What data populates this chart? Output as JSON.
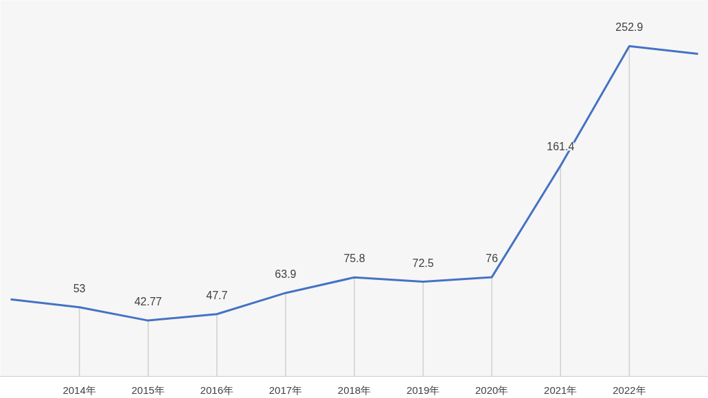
{
  "chart_data": {
    "type": "line",
    "categories": [
      null,
      "2014年",
      "2015年",
      "2016年",
      "2017年",
      "2018年",
      "2019年",
      "2020年",
      "2021年",
      "2022年",
      null
    ],
    "series": [
      {
        "color": "#4472c4",
        "values": [
          59,
          53,
          42.77,
          47.7,
          63.9,
          75.8,
          72.5,
          76,
          161.4,
          252.9,
          247
        ],
        "value_labels": [
          null,
          "53",
          "42.77",
          "47.7",
          "63.9",
          "75.8",
          "72.5",
          "76",
          "161.4",
          "252.9",
          null
        ]
      }
    ],
    "ylim": [
      0,
      288
    ],
    "grid": "x",
    "marker": "none",
    "line_style": "solid",
    "tick_labels": "x"
  }
}
